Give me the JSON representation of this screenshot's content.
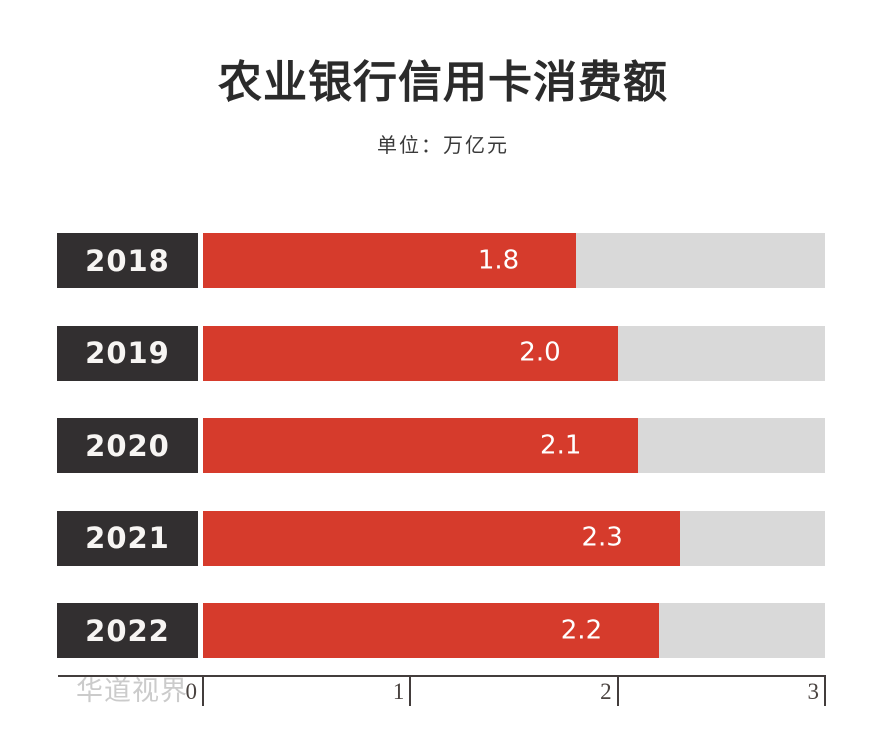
{
  "title": "农业银行信用卡消费额",
  "subtitle": "单位：万亿元",
  "watermark": "华道视界",
  "colors": {
    "bar": "#d63b2c",
    "track": "#d9d9d9",
    "label_box": "#322f30",
    "label_text": "#f7f5f3",
    "title_text": "#2b2b2b",
    "subtitle_text": "#3a3a3a",
    "axis": "#433d3c",
    "tick_text": "#4a4340",
    "watermark_text": "#cbcbcb"
  },
  "chart_data": {
    "type": "bar",
    "orientation": "horizontal",
    "title": "农业银行信用卡消费额",
    "unit_label": "单位：万亿元",
    "categories": [
      "2018",
      "2019",
      "2020",
      "2021",
      "2022"
    ],
    "values": [
      1.8,
      2.0,
      2.1,
      2.3,
      2.2
    ],
    "value_labels": [
      "1.8",
      "2.0",
      "2.1",
      "2.3",
      "2.2"
    ],
    "xlabel": "",
    "ylabel": "",
    "xlim": [
      0,
      3
    ],
    "xticks": [
      0,
      1,
      2,
      3
    ],
    "xtick_labels": [
      "0",
      "1",
      "2",
      "3"
    ],
    "grid": false,
    "legend": false,
    "track_full_value": 3.0
  }
}
